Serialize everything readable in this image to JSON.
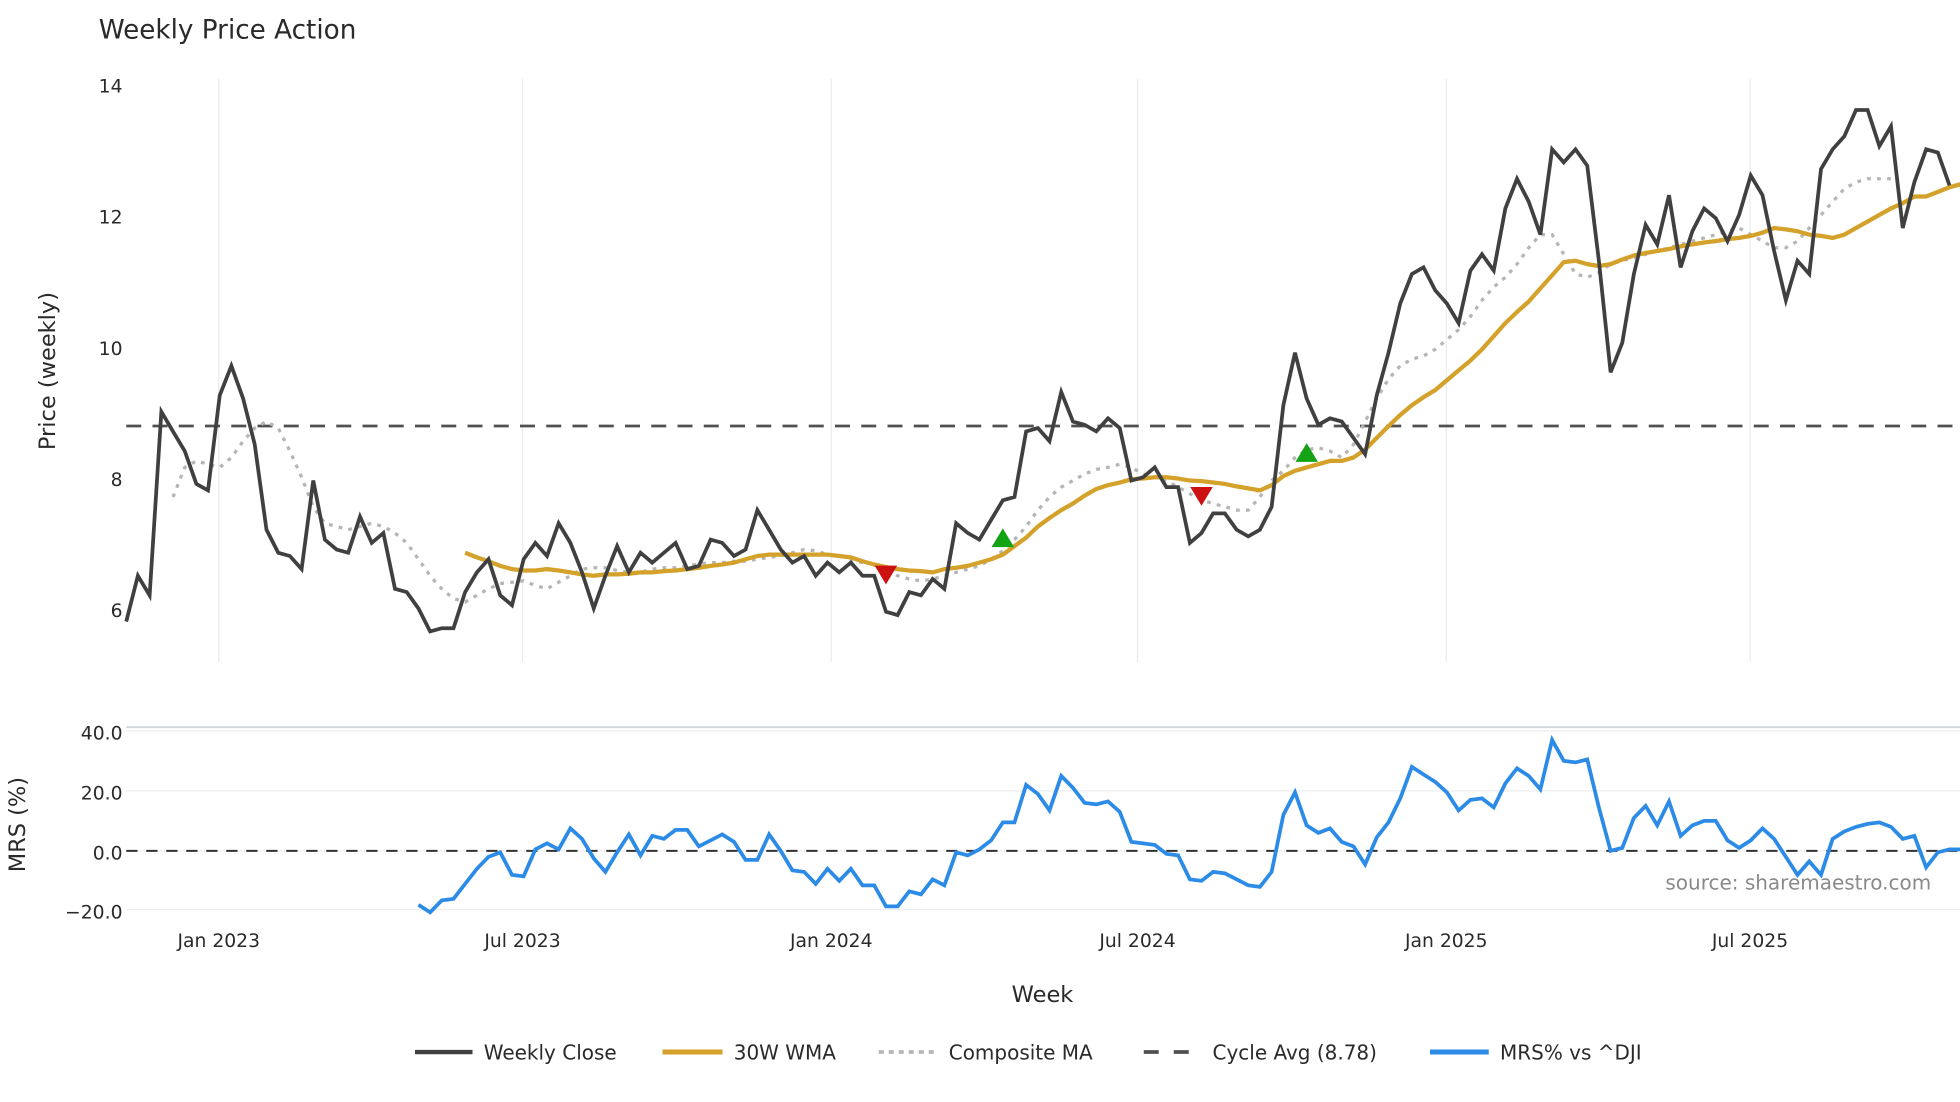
{
  "title": "Weekly Price Action",
  "colors": {
    "close": "#404040",
    "wma": "#d4a22a",
    "composite": "#b5b5b5",
    "cycle": "#505050",
    "mrs": "#2b8be6",
    "buy_marker": "#14a314",
    "sell_marker": "#cc1111",
    "grid": "#e9ecef",
    "source_text": "#8a8a8a"
  },
  "price_panel": {
    "ylabel": "Price (weekly)",
    "yticks": [
      "14",
      "12",
      "10",
      "8",
      "6"
    ]
  },
  "mrs_panel": {
    "ylabel": "MRS (%)",
    "yticks": [
      "40.0",
      "20.0",
      "0.0",
      "−20.0"
    ]
  },
  "xaxis": {
    "label": "Week",
    "ticks": [
      "Jan 2023",
      "Jul 2023",
      "Jan 2024",
      "Jul 2024",
      "Jan 2025",
      "Jul 2025"
    ]
  },
  "source": "source: sharemaestro.com",
  "legend": [
    {
      "label": "Weekly Close",
      "style": "solid",
      "color": "#404040"
    },
    {
      "label": "30W WMA",
      "style": "solid",
      "color": "#d4a22a"
    },
    {
      "label": "Composite MA",
      "style": "dotted",
      "color": "#b5b5b5"
    },
    {
      "label": "Cycle Avg (8.78)",
      "style": "dashed",
      "color": "#505050"
    },
    {
      "label": "MRS% vs ^DJI",
      "style": "solid",
      "color": "#2b8be6"
    }
  ],
  "chart_data": [
    {
      "type": "line",
      "title": "Weekly Price Action",
      "xlabel": "Week",
      "ylabel": "Price (weekly)",
      "ylim": [
        5.2,
        14.0
      ],
      "x_ticks": [
        "Jan 2023",
        "Jul 2023",
        "Jan 2024",
        "Jul 2024",
        "Jan 2025",
        "Jul 2025"
      ],
      "x_start": "Nov 2022 (week 0)",
      "grid": "vertical",
      "legend_position": "bottom",
      "series": [
        {
          "name": "Weekly Close",
          "start_index": 0,
          "values": [
            5.8,
            6.5,
            6.2,
            9.0,
            8.7,
            8.4,
            7.9,
            7.8,
            9.25,
            9.7,
            9.2,
            8.5,
            7.2,
            6.85,
            6.8,
            6.6,
            7.95,
            7.05,
            6.9,
            6.85,
            7.4,
            7.0,
            7.15,
            6.3,
            6.25,
            6.0,
            5.65,
            5.7,
            5.7,
            6.25,
            6.55,
            6.75,
            6.2,
            6.05,
            6.75,
            7.0,
            6.8,
            7.3,
            7.0,
            6.55,
            6.0,
            6.5,
            6.95,
            6.55,
            6.85,
            6.7,
            6.85,
            7.0,
            6.6,
            6.65,
            7.05,
            7.0,
            6.8,
            6.9,
            7.5,
            7.2,
            6.9,
            6.7,
            6.8,
            6.5,
            6.7,
            6.55,
            6.7,
            6.5,
            6.5,
            5.95,
            5.9,
            6.25,
            6.2,
            6.45,
            6.3,
            7.3,
            7.15,
            7.05,
            7.35,
            7.65,
            7.7,
            8.7,
            8.75,
            8.55,
            9.3,
            8.85,
            8.8,
            8.7,
            8.9,
            8.75,
            7.95,
            8.0,
            8.15,
            7.85,
            7.85,
            7.0,
            7.15,
            7.45,
            7.45,
            7.2,
            7.1,
            7.2,
            7.55,
            9.1,
            9.9,
            9.2,
            8.8,
            8.9,
            8.85,
            8.6,
            8.35,
            9.25,
            9.9,
            10.65,
            11.1,
            11.2,
            10.85,
            10.65,
            10.35,
            11.15,
            11.4,
            11.15,
            12.1,
            12.55,
            12.2,
            11.7,
            13.0,
            12.8,
            13.0,
            12.75,
            11.3,
            9.6,
            10.05,
            11.1,
            11.85,
            11.55,
            12.3,
            11.2,
            11.75,
            12.1,
            11.95,
            11.6,
            12.0,
            12.6,
            12.3,
            11.45,
            10.7,
            11.3,
            11.1,
            12.7,
            13.0,
            13.2,
            13.6,
            13.6,
            13.05,
            13.35,
            11.8,
            12.5,
            13.0,
            12.95,
            12.45
          ]
        },
        {
          "name": "30W WMA",
          "start_index": 29,
          "values": [
            6.85,
            6.78,
            6.72,
            6.65,
            6.6,
            6.58,
            6.58,
            6.6,
            6.58,
            6.55,
            6.52,
            6.5,
            6.52,
            6.52,
            6.53,
            6.55,
            6.55,
            6.57,
            6.58,
            6.6,
            6.62,
            6.65,
            6.67,
            6.7,
            6.75,
            6.8,
            6.82,
            6.82,
            6.82,
            6.82,
            6.82,
            6.82,
            6.8,
            6.78,
            6.72,
            6.67,
            6.63,
            6.6,
            6.58,
            6.57,
            6.55,
            6.6,
            6.62,
            6.65,
            6.7,
            6.75,
            6.82,
            6.95,
            7.08,
            7.25,
            7.38,
            7.5,
            7.6,
            7.72,
            7.82,
            7.88,
            7.92,
            7.97,
            7.98,
            8.0,
            8.0,
            7.98,
            7.95,
            7.94,
            7.92,
            7.9,
            7.86,
            7.83,
            7.8,
            7.88,
            8.02,
            8.1,
            8.15,
            8.2,
            8.25,
            8.25,
            8.3,
            8.42,
            8.6,
            8.78,
            8.95,
            9.1,
            9.22,
            9.33,
            9.48,
            9.63,
            9.78,
            9.95,
            10.15,
            10.35,
            10.52,
            10.68,
            10.88,
            11.08,
            11.28,
            11.3,
            11.25,
            11.22,
            11.25,
            11.32,
            11.38,
            11.42,
            11.45,
            11.48,
            11.52,
            11.55,
            11.58,
            11.6,
            11.63,
            11.65,
            11.68,
            11.73,
            11.8,
            11.78,
            11.75,
            11.7,
            11.68,
            11.65,
            11.7,
            11.8,
            11.9,
            12.0,
            12.1,
            12.18,
            12.28,
            12.28,
            12.35,
            12.42,
            12.47
          ]
        },
        {
          "name": "Composite MA",
          "start_index": 4,
          "values": [
            7.7,
            8.15,
            8.25,
            8.2,
            8.15,
            8.3,
            8.55,
            8.75,
            8.85,
            8.75,
            8.4,
            8.0,
            7.55,
            7.3,
            7.25,
            7.2,
            7.25,
            7.3,
            7.25,
            7.15,
            7.0,
            6.75,
            6.5,
            6.3,
            6.15,
            6.1,
            6.2,
            6.3,
            6.38,
            6.4,
            6.42,
            6.35,
            6.3,
            6.4,
            6.5,
            6.6,
            6.62,
            6.62,
            6.58,
            6.55,
            6.55,
            6.6,
            6.62,
            6.62,
            6.65,
            6.68,
            6.7,
            6.7,
            6.72,
            6.72,
            6.75,
            6.78,
            6.8,
            6.85,
            6.9,
            6.88,
            6.82,
            6.8,
            6.75,
            6.7,
            6.68,
            6.62,
            6.5,
            6.45,
            6.42,
            6.45,
            6.5,
            6.55,
            6.6,
            6.65,
            6.75,
            6.88,
            7.05,
            7.25,
            7.5,
            7.7,
            7.85,
            7.95,
            8.05,
            8.12,
            8.15,
            8.2,
            8.15,
            8.05,
            8.0,
            7.95,
            7.85,
            7.75,
            7.65,
            7.6,
            7.55,
            7.5,
            7.5,
            7.7,
            7.95,
            8.1,
            8.3,
            8.42,
            8.45,
            8.4,
            8.3,
            8.5,
            8.85,
            9.2,
            9.5,
            9.7,
            9.8,
            9.85,
            9.95,
            10.1,
            10.25,
            10.45,
            10.7,
            10.9,
            11.05,
            11.25,
            11.5,
            11.7,
            11.7,
            11.4,
            11.1,
            11.05,
            11.12,
            11.25,
            11.3,
            11.35,
            11.4,
            11.45,
            11.5,
            11.55,
            11.6,
            11.65,
            11.7,
            11.75,
            11.8,
            11.7,
            11.6,
            11.5,
            11.5,
            11.6,
            11.8,
            12.0,
            12.2,
            12.4,
            12.5,
            12.55,
            12.55,
            12.55
          ]
        },
        {
          "name": "Cycle Avg (8.78)",
          "type": "hline",
          "value": 8.78
        }
      ],
      "markers": [
        {
          "type": "sell",
          "shape": "triangle-down",
          "index": 65,
          "value": 6.5
        },
        {
          "type": "buy",
          "shape": "triangle-up",
          "index": 75,
          "value": 7.05
        },
        {
          "type": "sell",
          "shape": "triangle-down",
          "index": 92,
          "value": 7.7
        },
        {
          "type": "buy",
          "shape": "triangle-up",
          "index": 101,
          "value": 8.35
        }
      ]
    },
    {
      "type": "line",
      "title": "",
      "xlabel": "Week",
      "ylabel": "MRS (%)",
      "ylim": [
        -24,
        42
      ],
      "yticks": [
        40,
        20,
        0,
        -20
      ],
      "reference_line": {
        "value": 0,
        "style": "dashed"
      },
      "series": [
        {
          "name": "MRS% vs ^DJI",
          "start_index": 25,
          "values": [
            -18,
            -20.5,
            -16.5,
            -16,
            -11,
            -6,
            -2,
            -0.5,
            -8,
            -8.5,
            0.5,
            2.5,
            0.5,
            7.5,
            4,
            -2.5,
            -7,
            -0.5,
            5.5,
            -1.5,
            5,
            4,
            7,
            7,
            1.5,
            3.5,
            5.5,
            3,
            -3,
            -3,
            5.5,
            0,
            -6.5,
            -7,
            -11,
            -6,
            -10,
            -6,
            -11.5,
            -11.5,
            -18.5,
            -18.5,
            -13.5,
            -14.5,
            -9.5,
            -11.5,
            -0.5,
            -1.5,
            0.5,
            3.5,
            9.5,
            9.5,
            22,
            19,
            13.5,
            25,
            21,
            16,
            15.5,
            16.5,
            13,
            3,
            2.5,
            2,
            -1,
            -1.5,
            -9.5,
            -10,
            -7,
            -7.5,
            -9.5,
            -11.5,
            -12,
            -7,
            12,
            19.5,
            8.5,
            6,
            7.5,
            3,
            1.5,
            -4.5,
            4.5,
            9.5,
            17.5,
            28,
            25.5,
            23,
            19.5,
            13.5,
            17,
            17.5,
            14.5,
            22.5,
            27.5,
            25,
            20.5,
            37,
            30,
            29.5,
            30.5,
            14.5,
            0,
            1,
            11,
            15,
            8.5,
            16.5,
            5,
            8.5,
            10,
            10,
            3.5,
            1,
            3.5,
            7.5,
            4,
            -2,
            -8,
            -3.5,
            -8,
            4,
            6.5,
            8,
            9,
            9.5,
            8,
            4,
            5,
            -5.5,
            -0.5,
            0.5,
            0.5,
            -3.5
          ]
        }
      ],
      "annotation": "source: sharemaestro.com"
    }
  ]
}
